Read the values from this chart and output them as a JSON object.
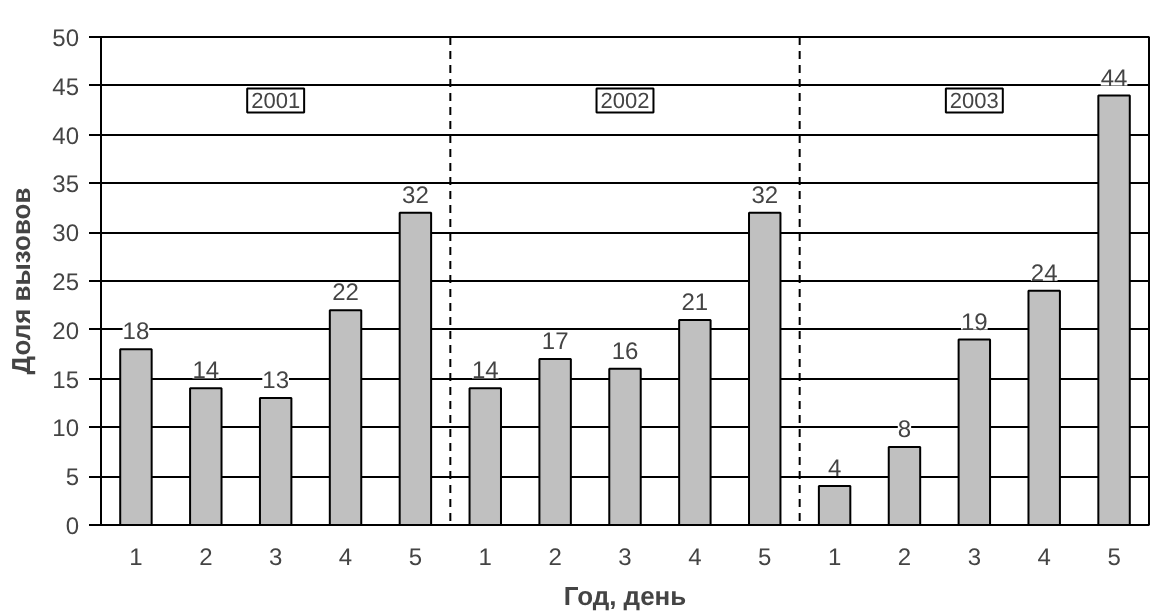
{
  "chart_data": {
    "type": "bar",
    "xlabel": "Год, день",
    "ylabel": "Доля вызовов",
    "categories": [
      "1",
      "2",
      "3",
      "4",
      "5",
      "1",
      "2",
      "3",
      "4",
      "5",
      "1",
      "2",
      "3",
      "4",
      "5"
    ],
    "values": [
      18,
      14,
      13,
      22,
      32,
      14,
      17,
      16,
      21,
      32,
      4,
      8,
      19,
      24,
      44
    ],
    "color": "#c0c0c0",
    "data_labels": true,
    "ylim": [
      0,
      50
    ],
    "yticks": [
      0,
      5,
      10,
      15,
      20,
      25,
      30,
      35,
      40,
      45,
      50
    ],
    "grid": "y",
    "annotations": [
      "2001",
      "2002",
      "2003"
    ]
  }
}
